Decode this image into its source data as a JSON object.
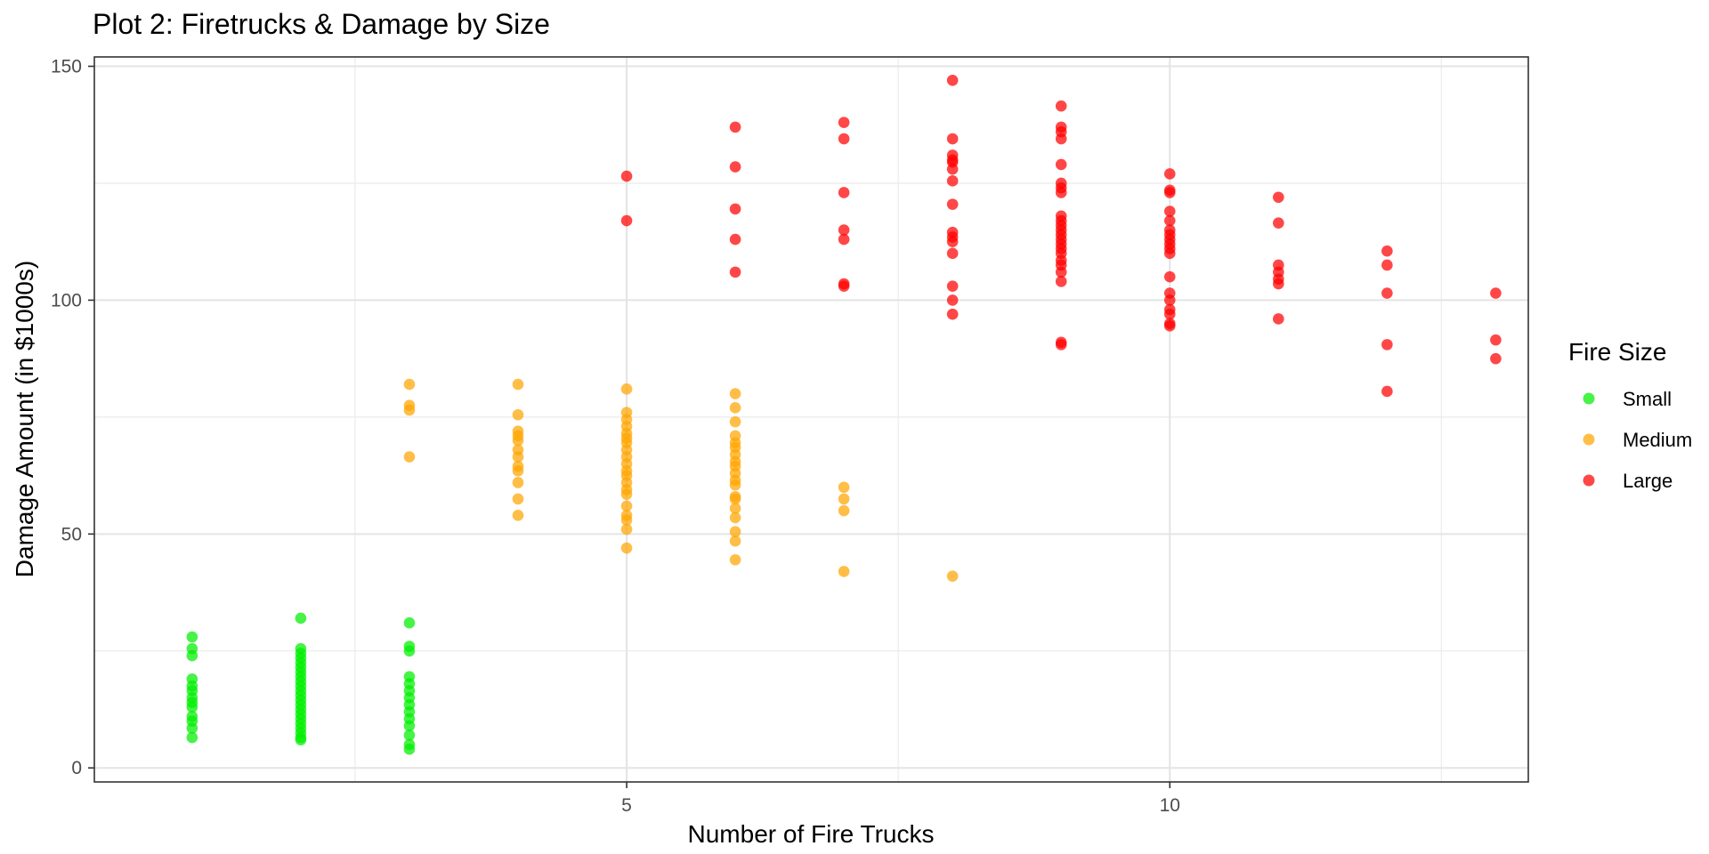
{
  "chart_data": {
    "type": "scatter",
    "title": "Plot 2: Firetrucks & Damage by Size",
    "xlabel": "Number of Fire Trucks",
    "ylabel": "Damage Amount (in $1000s)",
    "xlim": [
      0.1,
      13.3
    ],
    "ylim": [
      -3,
      152
    ],
    "x_major_ticks": [
      5,
      10
    ],
    "x_minor_ticks": [
      2.5,
      7.5,
      12.5
    ],
    "y_major_ticks": [
      0,
      50,
      100,
      150
    ],
    "y_minor_ticks": [
      25,
      75,
      125
    ],
    "x_tick_labels": [
      "5",
      "10"
    ],
    "y_tick_labels": [
      "0",
      "50",
      "100",
      "150"
    ],
    "grid": true,
    "legend": {
      "title": "Fire Size",
      "position": "right",
      "entries": [
        "Small",
        "Medium",
        "Large"
      ]
    },
    "series": [
      {
        "name": "Small",
        "color": "#00ee00",
        "points": [
          [
            1,
            28
          ],
          [
            1,
            25.5
          ],
          [
            1,
            24
          ],
          [
            1,
            19
          ],
          [
            1,
            17.5
          ],
          [
            1,
            16.5
          ],
          [
            1,
            15
          ],
          [
            1,
            14
          ],
          [
            1,
            13
          ],
          [
            1,
            11
          ],
          [
            1,
            10
          ],
          [
            1,
            8.5
          ],
          [
            1,
            6.5
          ],
          [
            2,
            32
          ],
          [
            2,
            25.5
          ],
          [
            2,
            24.5
          ],
          [
            2,
            23.5
          ],
          [
            2,
            22.5
          ],
          [
            2,
            21.5
          ],
          [
            2,
            20.5
          ],
          [
            2,
            19.5
          ],
          [
            2,
            18.5
          ],
          [
            2,
            17.5
          ],
          [
            2,
            16.5
          ],
          [
            2,
            15.5
          ],
          [
            2,
            14.5
          ],
          [
            2,
            13.5
          ],
          [
            2,
            12.5
          ],
          [
            2,
            11.5
          ],
          [
            2,
            10.5
          ],
          [
            2,
            9.5
          ],
          [
            2,
            8.5
          ],
          [
            2,
            7.5
          ],
          [
            2,
            6.5
          ],
          [
            2,
            6
          ],
          [
            3,
            31
          ],
          [
            3,
            26
          ],
          [
            3,
            25
          ],
          [
            3,
            19.5
          ],
          [
            3,
            18
          ],
          [
            3,
            16.5
          ],
          [
            3,
            15
          ],
          [
            3,
            13.5
          ],
          [
            3,
            12
          ],
          [
            3,
            10.5
          ],
          [
            3,
            9
          ],
          [
            3,
            7
          ],
          [
            3,
            5
          ],
          [
            3,
            4
          ]
        ]
      },
      {
        "name": "Medium",
        "color": "#ffa500",
        "points": [
          [
            3,
            82
          ],
          [
            3,
            77.5
          ],
          [
            3,
            76.5
          ],
          [
            3,
            66.5
          ],
          [
            4,
            82
          ],
          [
            4,
            75.5
          ],
          [
            4,
            72
          ],
          [
            4,
            71
          ],
          [
            4,
            70
          ],
          [
            4,
            68
          ],
          [
            4,
            66.5
          ],
          [
            4,
            64.5
          ],
          [
            4,
            63.5
          ],
          [
            4,
            61
          ],
          [
            4,
            57.5
          ],
          [
            4,
            54
          ],
          [
            5,
            81
          ],
          [
            5,
            76
          ],
          [
            5,
            74.5
          ],
          [
            5,
            73
          ],
          [
            5,
            71.5
          ],
          [
            5,
            70.5
          ],
          [
            5,
            69.5
          ],
          [
            5,
            68
          ],
          [
            5,
            66.5
          ],
          [
            5,
            65
          ],
          [
            5,
            63.5
          ],
          [
            5,
            62.5
          ],
          [
            5,
            61
          ],
          [
            5,
            59.5
          ],
          [
            5,
            58.5
          ],
          [
            5,
            56
          ],
          [
            5,
            54
          ],
          [
            5,
            53
          ],
          [
            5,
            51
          ],
          [
            5,
            47
          ],
          [
            6,
            80
          ],
          [
            6,
            77
          ],
          [
            6,
            74
          ],
          [
            6,
            71
          ],
          [
            6,
            69.5
          ],
          [
            6,
            68.5
          ],
          [
            6,
            67
          ],
          [
            6,
            65.5
          ],
          [
            6,
            64.5
          ],
          [
            6,
            63
          ],
          [
            6,
            61.5
          ],
          [
            6,
            60.5
          ],
          [
            6,
            58
          ],
          [
            6,
            57.5
          ],
          [
            6,
            55.5
          ],
          [
            6,
            53.5
          ],
          [
            6,
            50.5
          ],
          [
            6,
            48.5
          ],
          [
            6,
            44.5
          ],
          [
            7,
            60
          ],
          [
            7,
            57.5
          ],
          [
            7,
            55
          ],
          [
            7,
            42
          ],
          [
            8,
            41
          ]
        ]
      },
      {
        "name": "Large",
        "color": "#ff0000",
        "points": [
          [
            5,
            126.5
          ],
          [
            5,
            117
          ],
          [
            6,
            137
          ],
          [
            6,
            128.5
          ],
          [
            6,
            119.5
          ],
          [
            6,
            113
          ],
          [
            6,
            106
          ],
          [
            7,
            138
          ],
          [
            7,
            134.5
          ],
          [
            7,
            123
          ],
          [
            7,
            115
          ],
          [
            7,
            113
          ],
          [
            7,
            103.5
          ],
          [
            7,
            103
          ],
          [
            8,
            147
          ],
          [
            8,
            134.5
          ],
          [
            8,
            131
          ],
          [
            8,
            130
          ],
          [
            8,
            129.5
          ],
          [
            8,
            128
          ],
          [
            8,
            125.5
          ],
          [
            8,
            120.5
          ],
          [
            8,
            114.5
          ],
          [
            8,
            113.5
          ],
          [
            8,
            112.5
          ],
          [
            8,
            110
          ],
          [
            8,
            103
          ],
          [
            8,
            100
          ],
          [
            8,
            97
          ],
          [
            9,
            141.5
          ],
          [
            9,
            137
          ],
          [
            9,
            136
          ],
          [
            9,
            134.5
          ],
          [
            9,
            129
          ],
          [
            9,
            125
          ],
          [
            9,
            124
          ],
          [
            9,
            123
          ],
          [
            9,
            118
          ],
          [
            9,
            117
          ],
          [
            9,
            116
          ],
          [
            9,
            115
          ],
          [
            9,
            114
          ],
          [
            9,
            113
          ],
          [
            9,
            112
          ],
          [
            9,
            111
          ],
          [
            9,
            110
          ],
          [
            9,
            108.5
          ],
          [
            9,
            107.5
          ],
          [
            9,
            106
          ],
          [
            9,
            104
          ],
          [
            9,
            91
          ],
          [
            9,
            90.5
          ],
          [
            10,
            127
          ],
          [
            10,
            123.5
          ],
          [
            10,
            123
          ],
          [
            10,
            119
          ],
          [
            10,
            117
          ],
          [
            10,
            115
          ],
          [
            10,
            114
          ],
          [
            10,
            113
          ],
          [
            10,
            112
          ],
          [
            10,
            111
          ],
          [
            10,
            110
          ],
          [
            10,
            105
          ],
          [
            10,
            101.5
          ],
          [
            10,
            100
          ],
          [
            10,
            98
          ],
          [
            10,
            97
          ],
          [
            10,
            95
          ],
          [
            10,
            94.5
          ],
          [
            11,
            122
          ],
          [
            11,
            116.5
          ],
          [
            11,
            107.5
          ],
          [
            11,
            106
          ],
          [
            11,
            104.5
          ],
          [
            11,
            103.5
          ],
          [
            11,
            96
          ],
          [
            12,
            110.5
          ],
          [
            12,
            107.5
          ],
          [
            12,
            101.5
          ],
          [
            12,
            90.5
          ],
          [
            12,
            80.5
          ],
          [
            13,
            101.5
          ],
          [
            13,
            91.5
          ],
          [
            13,
            87.5
          ]
        ]
      }
    ]
  }
}
